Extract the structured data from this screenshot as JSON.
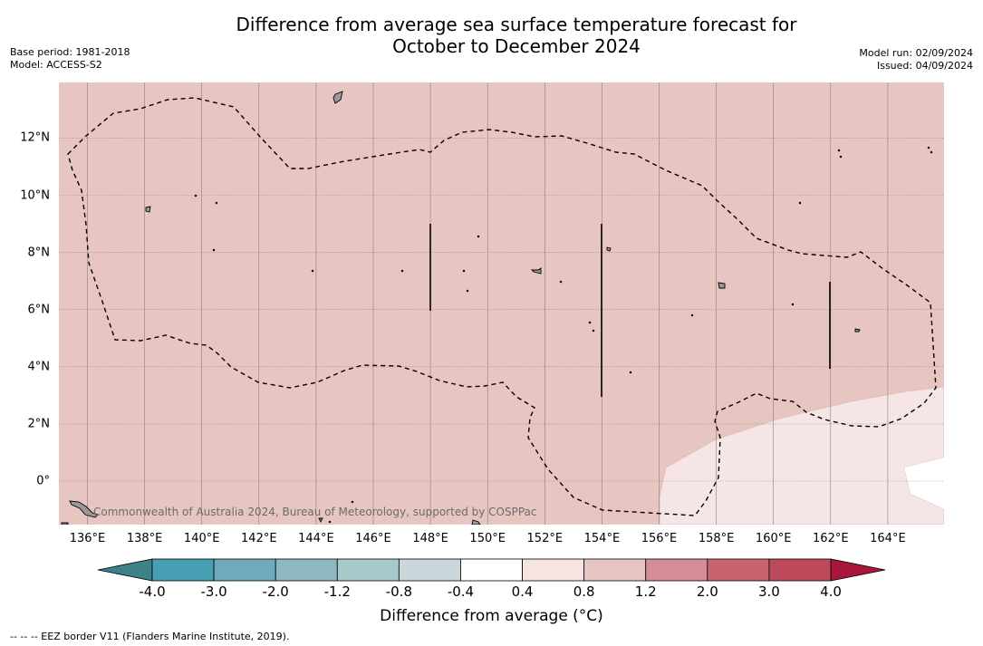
{
  "title_line1": "Difference from average sea surface temperature forecast for",
  "title_line2": "October to December 2024",
  "base_period": "Base period: 1981-2018",
  "model": "Model: ACCESS-S2",
  "model_run": "Model run: 02/09/2024",
  "issued": "Issued: 04/09/2024",
  "credit": "Commonwealth of Australia 2024, Bureau of Meteorology, supported by COSPPac",
  "x_ticks": [
    "136°E",
    "138°E",
    "140°E",
    "142°E",
    "144°E",
    "146°E",
    "148°E",
    "150°E",
    "152°E",
    "154°E",
    "156°E",
    "158°E",
    "160°E",
    "162°E",
    "164°E"
  ],
  "y_ticks": [
    "12°N",
    "10°N",
    "8°N",
    "6°N",
    "4°N",
    "2°N",
    "0°"
  ],
  "colorbar": {
    "title": "Difference from average (°C)",
    "ticks": [
      "-4.0",
      "-3.0",
      "-2.0",
      "-1.2",
      "-0.8",
      "-0.4",
      "0.4",
      "0.8",
      "1.2",
      "2.0",
      "3.0",
      "4.0"
    ],
    "colors": [
      "#469fb2",
      "#6eaabb",
      "#8db8c3",
      "#a9c8cc",
      "#cad7db",
      "#ffffff",
      "#f5e4e2",
      "#e6c6c3",
      "#d48d94",
      "#c8646f",
      "#bd4a5a"
    ],
    "extend_low_color": "#3f8189",
    "extend_high_color": "#a8173a"
  },
  "colors": {
    "ocean_fill": "#e7c6c2",
    "low_anomaly_fill": "#f5e6e5",
    "border": "#000000"
  },
  "footnote": "--  --  -- EEZ border V11 (Flanders Marine Institute, 2019)."
}
